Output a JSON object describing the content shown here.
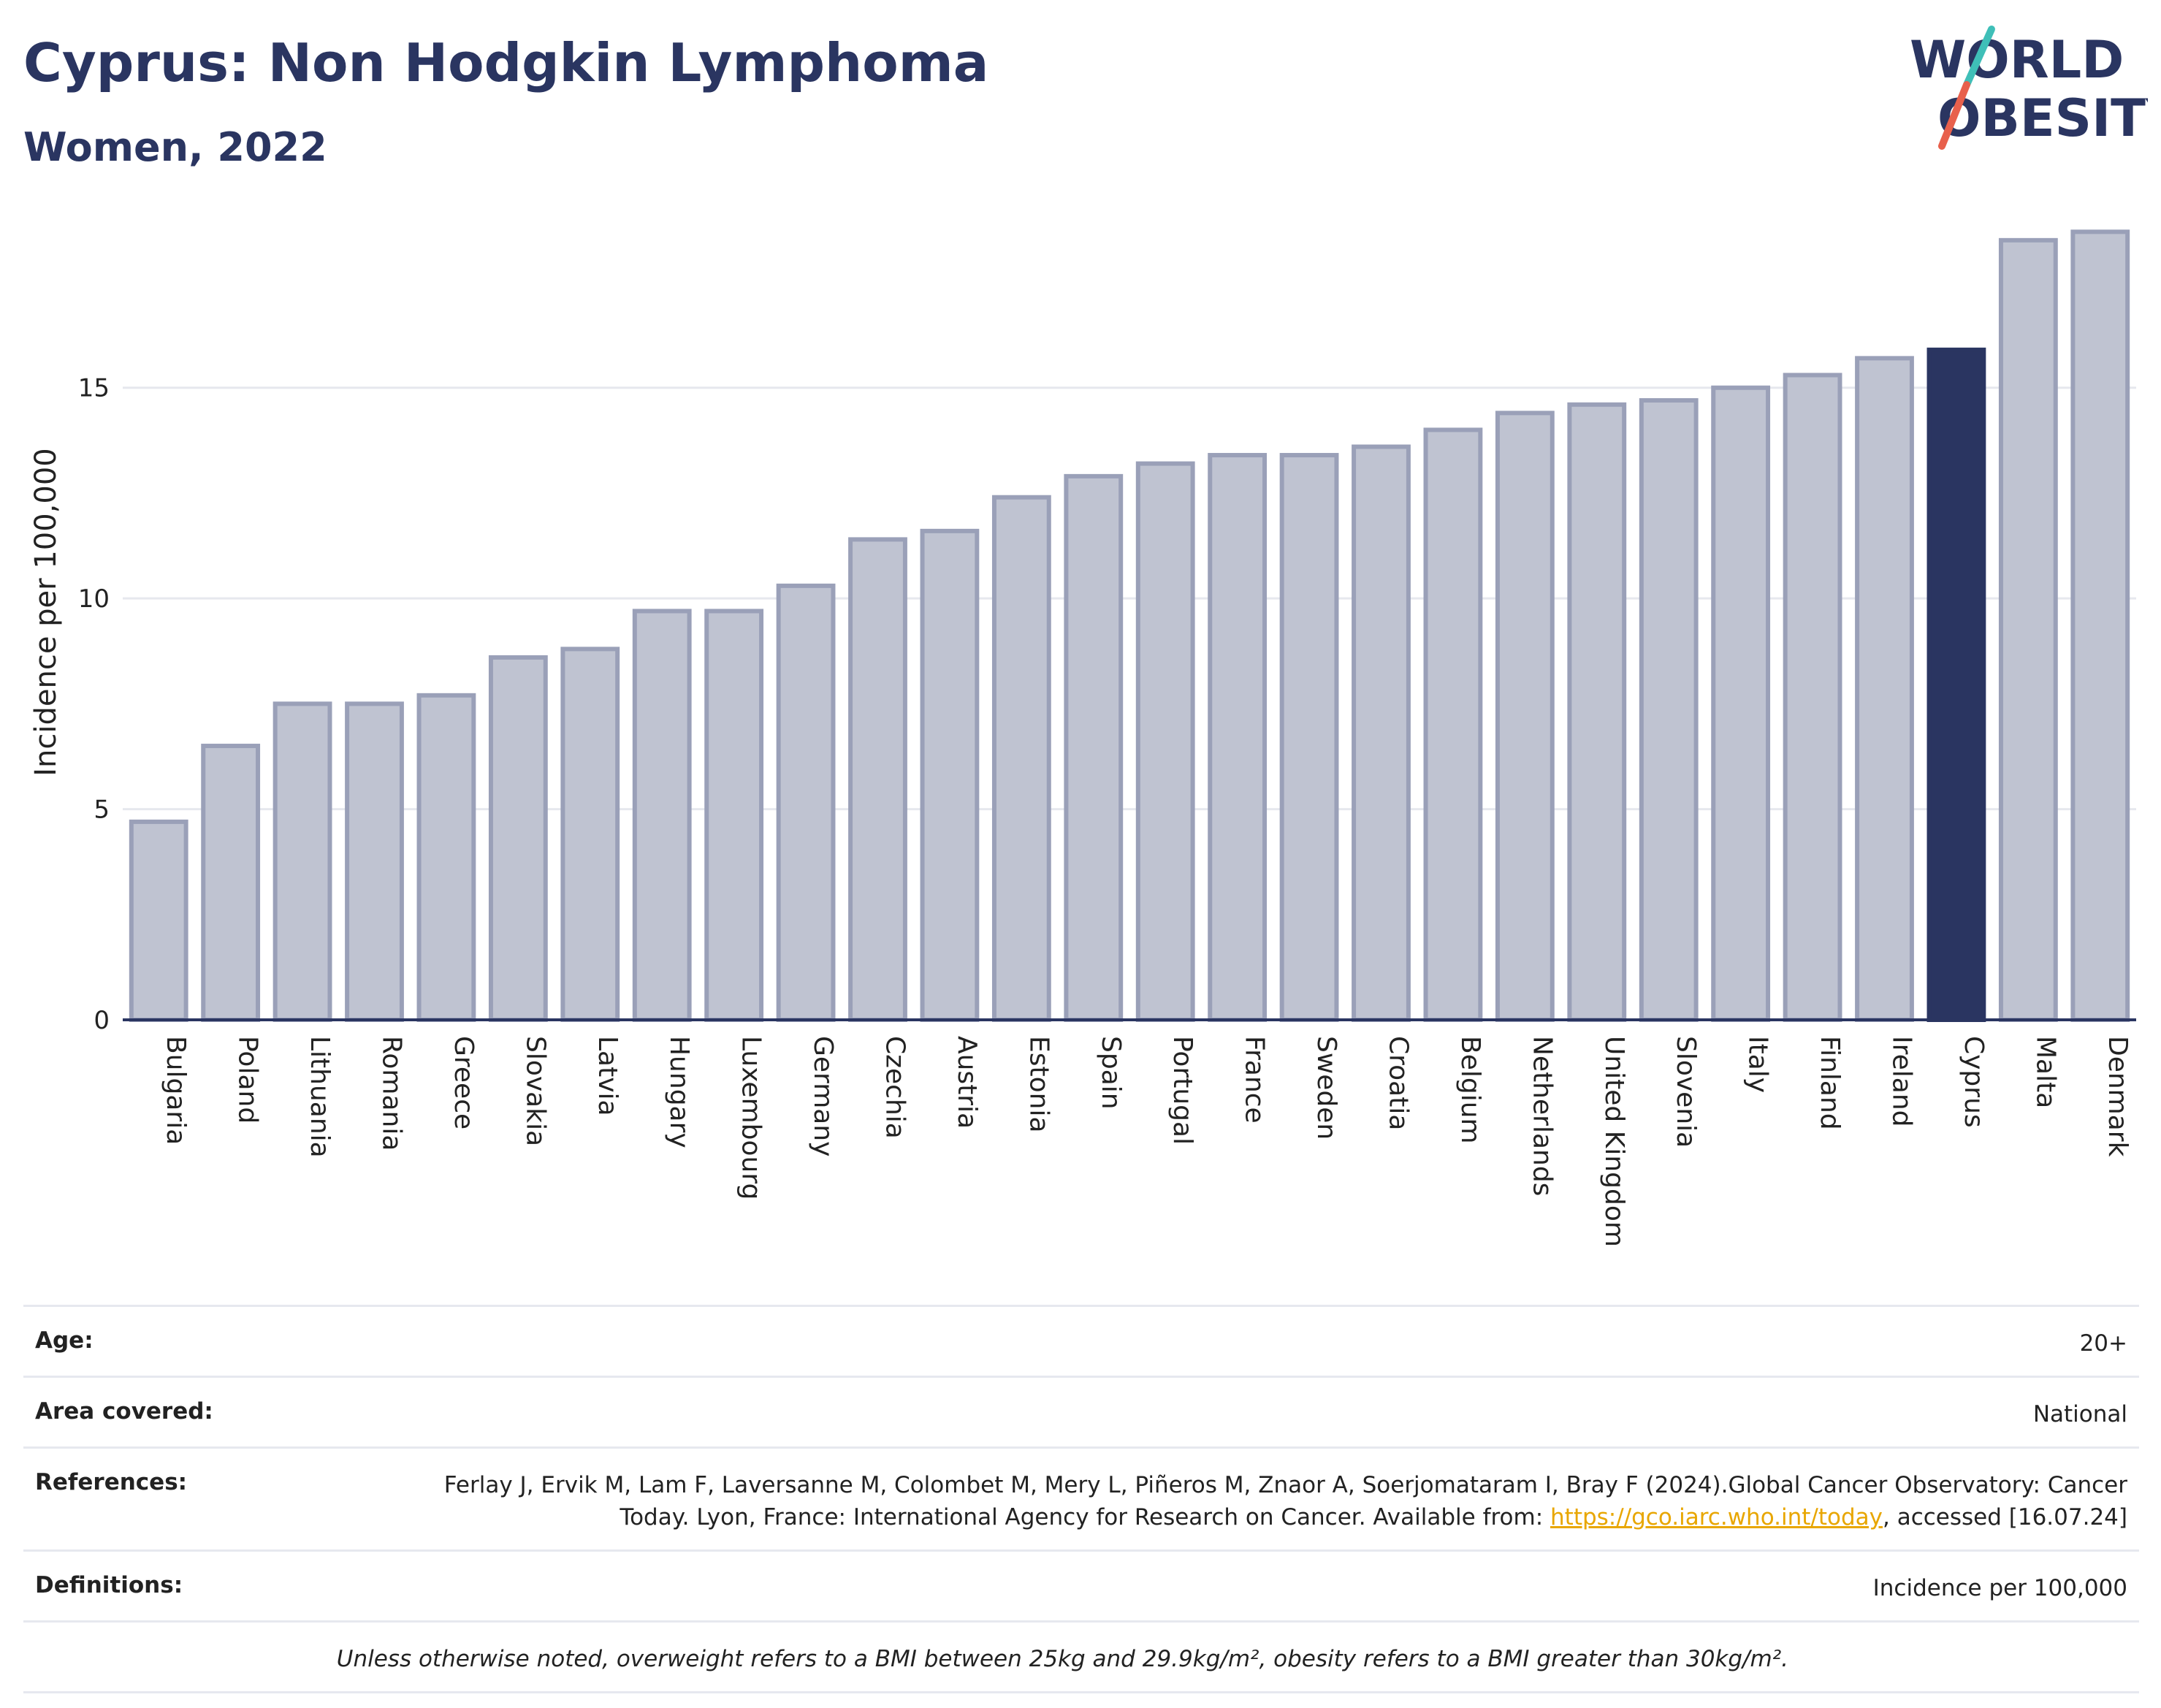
{
  "header": {
    "title": "Cyprus: Non Hodgkin Lymphoma",
    "subtitle": "Women, 2022"
  },
  "logo": {
    "line1": "WORLD",
    "line2": "OBESITY",
    "slash_color_top": "#3fbfb8",
    "slash_color_bottom": "#e8604c"
  },
  "colors": {
    "highlight_bar": "#2a3561",
    "other_bar": "#bfc3d1",
    "other_bar_border": "#9aa0b8",
    "text_dark": "#2a3561",
    "link": "#e8a600"
  },
  "chart_data": {
    "type": "bar",
    "title": "Cyprus: Non Hodgkin Lymphoma",
    "subtitle": "Women, 2022",
    "ylabel": "Incidence per 100,000",
    "xlabel": "",
    "ylim": [
      0,
      19
    ],
    "yticks": [
      0,
      5,
      10,
      15
    ],
    "grid": true,
    "highlight": "Cyprus",
    "categories": [
      "Bulgaria",
      "Poland",
      "Lithuania",
      "Romania",
      "Greece",
      "Slovakia",
      "Latvia",
      "Hungary",
      "Luxembourg",
      "Germany",
      "Czechia",
      "Austria",
      "Estonia",
      "Spain",
      "Portugal",
      "France",
      "Sweden",
      "Croatia",
      "Belgium",
      "Netherlands",
      "United Kingdom",
      "Slovenia",
      "Italy",
      "Finland",
      "Ireland",
      "Cyprus",
      "Malta",
      "Denmark"
    ],
    "values": [
      4.7,
      6.5,
      7.5,
      7.5,
      7.7,
      8.6,
      8.8,
      9.7,
      9.7,
      10.3,
      11.4,
      11.6,
      12.4,
      12.9,
      13.2,
      13.4,
      13.4,
      13.6,
      14.0,
      14.4,
      14.6,
      14.7,
      15.0,
      15.3,
      15.7,
      15.9,
      18.5,
      18.7
    ]
  },
  "info": {
    "age_label": "Age:",
    "age_value": "20+",
    "area_label": "Area covered:",
    "area_value": "National",
    "references_label": "References:",
    "references_text_1": "Ferlay J, Ervik M, Lam F, Laversanne M, Colombet M, Mery L, Piñeros M, Znaor A, Soerjomataram I, Bray F (2024).Global Cancer Observatory: Cancer Today. Lyon, France: International Agency for Research on Cancer. Available from: ",
    "references_link": "https://gco.iarc.who.int/today",
    "references_text_2": ", accessed [16.07.24]",
    "definitions_label": "Definitions:",
    "definitions_value": "Incidence per 100,000",
    "note": "Unless otherwise noted, overweight refers to a BMI between 25kg and 29.9kg/m², obesity refers to a BMI greater than 30kg/m²."
  }
}
